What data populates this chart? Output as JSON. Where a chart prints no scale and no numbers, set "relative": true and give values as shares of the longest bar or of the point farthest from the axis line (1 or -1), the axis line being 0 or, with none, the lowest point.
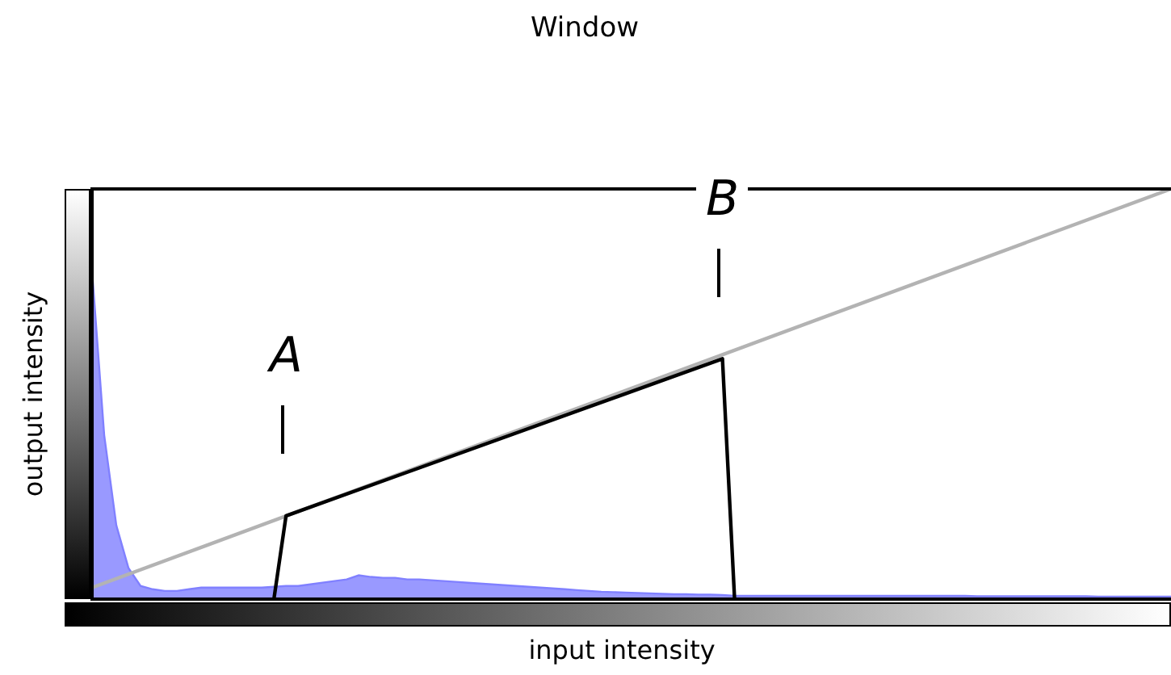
{
  "chart_data": {
    "type": "area",
    "title": "Window",
    "xlabel": "input intensity",
    "ylabel": "output intensity",
    "relative": true,
    "legend": false,
    "categories": [
      null,
      null,
      null,
      null,
      null,
      null,
      null,
      null,
      null,
      null,
      null,
      null,
      null,
      null,
      null,
      null,
      null,
      null,
      null,
      null,
      null,
      null,
      null,
      null,
      null,
      null,
      null,
      null,
      null,
      null,
      null,
      null,
      null,
      null,
      null,
      null,
      null,
      null,
      null,
      null,
      null,
      null,
      null,
      null,
      null,
      null,
      null,
      null,
      null,
      null,
      null,
      null,
      null,
      null,
      null,
      null,
      null,
      null,
      null,
      null,
      null,
      null,
      null,
      null,
      null,
      null,
      null,
      null,
      null,
      null,
      null,
      null,
      null,
      null,
      null,
      null,
      null,
      null,
      null,
      null,
      null,
      null,
      null,
      null,
      null,
      null,
      null,
      null,
      null,
      null
    ],
    "series": [
      {
        "color": "#8080ff",
        "values": [
          0.8,
          0.4,
          0.18,
          0.076,
          0.032,
          0.024,
          0.02,
          0.02,
          0.024,
          0.028,
          0.028,
          0.028,
          0.028,
          0.028,
          0.028,
          0.03,
          0.032,
          0.032,
          0.036,
          0.04,
          0.044,
          0.048,
          0.058,
          0.054,
          0.052,
          0.052,
          0.048,
          0.048,
          0.046,
          0.044,
          0.042,
          0.04,
          0.038,
          0.036,
          0.034,
          0.032,
          0.03,
          0.028,
          0.026,
          0.024,
          0.022,
          0.02,
          0.018,
          0.017,
          0.016,
          0.015,
          0.014,
          0.013,
          0.012,
          0.012,
          0.011,
          0.011,
          0.01,
          0.008,
          0.008,
          0.008,
          0.008,
          0.008,
          0.008,
          0.008,
          0.008,
          0.008,
          0.008,
          0.008,
          0.008,
          0.008,
          0.008,
          0.008,
          0.008,
          0.008,
          0.008,
          0.008,
          0.008,
          0.007,
          0.007,
          0.007,
          0.007,
          0.007,
          0.007,
          0.007,
          0.007,
          0.007,
          0.007,
          0.006,
          0.006,
          0.006,
          0.006,
          0.006,
          0.006,
          0.006
        ]
      },
      {
        "type": "line",
        "color": "#b3b3b3",
        "values": [
          0.028,
          null,
          null,
          null,
          null,
          null,
          null,
          null,
          null,
          null,
          null,
          null,
          null,
          null,
          null,
          null,
          null,
          null,
          null,
          null,
          null,
          null,
          null,
          null,
          null,
          null,
          null,
          null,
          null,
          null,
          null,
          null,
          null,
          null,
          null,
          null,
          null,
          null,
          null,
          null,
          null,
          null,
          null,
          null,
          null,
          null,
          null,
          null,
          null,
          null,
          null,
          null,
          null,
          null,
          null,
          null,
          null,
          null,
          null,
          null,
          null,
          null,
          null,
          null,
          null,
          null,
          null,
          null,
          null,
          null,
          null,
          null,
          null,
          null,
          null,
          null,
          null,
          null,
          null,
          null,
          null,
          null,
          null,
          null,
          null,
          null,
          null,
          null,
          null,
          1
        ]
      },
      {
        "type": "line",
        "color": "#000000",
        "values": [
          null,
          null,
          null,
          null,
          null,
          null,
          null,
          null,
          null,
          null,
          null,
          null,
          null,
          null,
          null,
          0,
          0.203,
          null,
          null,
          null,
          null,
          null,
          null,
          null,
          null,
          null,
          null,
          null,
          null,
          null,
          null,
          null,
          null,
          null,
          null,
          null,
          null,
          null,
          null,
          null,
          null,
          null,
          null,
          null,
          null,
          null,
          null,
          null,
          null,
          null,
          null,
          null,
          0.586,
          0,
          null,
          null,
          null,
          null,
          null,
          null,
          null,
          null,
          null,
          null,
          null,
          null,
          null,
          null,
          null,
          null,
          null,
          null,
          null,
          null,
          null,
          null,
          null,
          null,
          null,
          null,
          null,
          null,
          null,
          null,
          null,
          null,
          null,
          null,
          null,
          null
        ]
      }
    ],
    "annotations": [
      "A",
      "B"
    ]
  }
}
